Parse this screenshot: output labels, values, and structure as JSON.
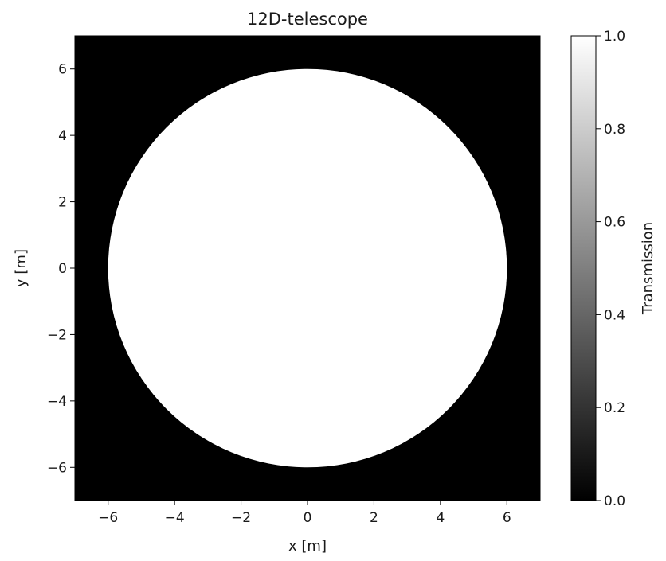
{
  "chart_data": {
    "type": "heatmap",
    "title": "12D-telescope",
    "xlabel": "x [m]",
    "ylabel": "y [m]",
    "xlim": [
      -7,
      7
    ],
    "ylim": [
      -7,
      7
    ],
    "xticks": [
      -6,
      -4,
      -2,
      0,
      2,
      4,
      6
    ],
    "yticks": [
      -6,
      -4,
      -2,
      0,
      2,
      4,
      6
    ],
    "xtick_labels": [
      "−6",
      "−4",
      "−2",
      "0",
      "2",
      "4",
      "6"
    ],
    "ytick_labels": [
      "−6",
      "−4",
      "−2",
      "0",
      "2",
      "4",
      "6"
    ],
    "aperture": {
      "shape": "circle",
      "center": [
        0,
        0
      ],
      "diameter": 12
    },
    "values": {
      "inside_aperture": 1.0,
      "outside_aperture": 0.0
    },
    "colormap": "gray",
    "colorbar": {
      "label": "Transmission",
      "range": [
        0.0,
        1.0
      ],
      "ticks": [
        0.0,
        0.2,
        0.4,
        0.6,
        0.8,
        1.0
      ],
      "tick_labels": [
        "0.0",
        "0.2",
        "0.4",
        "0.6",
        "0.8",
        "1.0"
      ]
    },
    "grid": false
  }
}
